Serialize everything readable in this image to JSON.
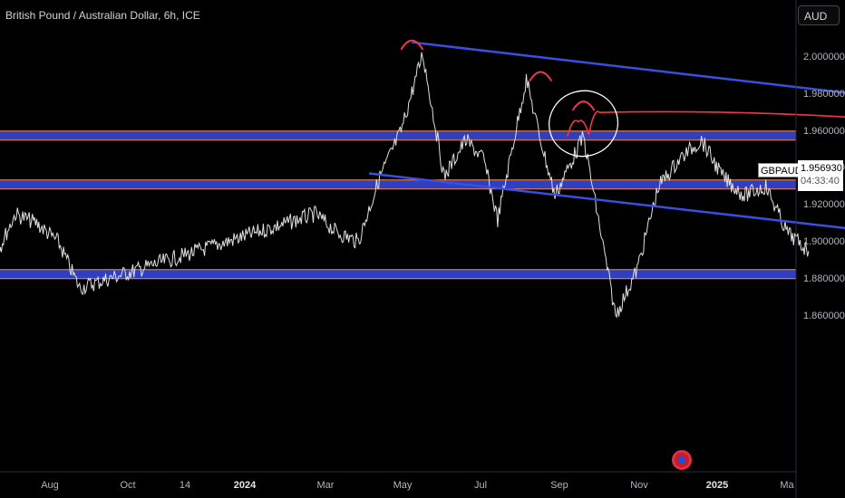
{
  "header": {
    "title": "British Pound / Australian Dollar, 6h, ICE",
    "currency_button": "AUD"
  },
  "price_tag": {
    "symbol": "GBPAUD",
    "price": "1.956930",
    "countdown": "04:33:40"
  },
  "chart_data": {
    "type": "line",
    "title": "British Pound / Australian Dollar, 6h, ICE",
    "ylim": [
      1.852,
      2.016
    ],
    "x_tick_labels": [
      "Aug",
      "Oct",
      "14",
      "2024",
      "Mar",
      "May",
      "Jul",
      "Sep",
      "Nov",
      "2025",
      "Ma"
    ],
    "y_tick_labels": [
      "2.000000",
      "1.980000",
      "1.960000",
      "1.940000",
      "1.920000",
      "1.900000",
      "1.880000",
      "1.860000"
    ],
    "y_ticks": [
      2.0,
      1.98,
      1.96,
      1.94,
      1.92,
      1.9,
      1.88,
      1.86
    ],
    "price_series": {
      "name": "GBPAUD",
      "color": "#e0e0e0",
      "points": [
        [
          "Jun 2023",
          1.905
        ],
        [
          "Jul 2023",
          1.915
        ],
        [
          "Jul 2023",
          1.935
        ],
        [
          "Aug 2023",
          1.955
        ],
        [
          "Aug 2023",
          1.993
        ],
        [
          "Sep 2023",
          1.96
        ],
        [
          "Sep 2023",
          1.935
        ],
        [
          "Oct 2023",
          1.905
        ],
        [
          "Oct 2023",
          1.89
        ],
        [
          "Nov 2023",
          1.915
        ],
        [
          "Nov 2023",
          1.91
        ],
        [
          "Dec 2023",
          1.9
        ],
        [
          "Dec 2023",
          1.875
        ],
        [
          "Jan 2024",
          1.86
        ],
        [
          "Jan 2024",
          1.885
        ],
        [
          "Feb 2024",
          1.93
        ],
        [
          "Feb 2024",
          1.945
        ],
        [
          "Mar 2024",
          1.955
        ],
        [
          "Mar 2024",
          1.935
        ],
        [
          "Apr 2024",
          1.925
        ],
        [
          "Apr 2024",
          1.93
        ],
        [
          "May 2024",
          1.905
        ],
        [
          "May 2024",
          1.895
        ],
        [
          "Jun 2024",
          1.915
        ],
        [
          "Jun 2024",
          1.905
        ],
        [
          "Jul 2024",
          1.9
        ],
        [
          "Jul 2024",
          1.935
        ],
        [
          "Aug 2024",
          1.96
        ],
        [
          "Aug 2024",
          2.002
        ],
        [
          "Sep 2024",
          1.935
        ],
        [
          "Sep 2024",
          1.955
        ],
        [
          "Oct 2024",
          1.945
        ],
        [
          "Oct 2024",
          1.912
        ],
        [
          "Oct 2024",
          1.95
        ],
        [
          "Nov 2024",
          1.988
        ],
        [
          "Nov 2024",
          1.955
        ],
        [
          "Nov 2024",
          1.925
        ],
        [
          "Dec 2024",
          1.957
        ]
      ]
    },
    "projection": {
      "color": "#f23645",
      "points": [
        [
          "Dec 2024",
          1.957
        ],
        [
          "Dec 2024",
          1.965
        ],
        [
          "Dec 2024",
          1.958
        ],
        [
          "Dec 2024",
          1.97
        ],
        [
          "Jan 2025",
          1.952
        ],
        [
          "Jan 2025",
          1.955
        ],
        [
          "Jan 2025",
          1.933
        ],
        [
          "Feb 2025",
          1.94
        ],
        [
          "Feb 2025",
          1.912
        ],
        [
          "Mar 2025",
          1.916
        ],
        [
          "Mar 2025",
          1.892
        ]
      ]
    },
    "horizontal_zones": [
      {
        "center": 1.9575,
        "fill": "#2f3fbf",
        "border": "#ff8a3d"
      },
      {
        "center": 1.931,
        "fill": "#2f3fbf",
        "border": "#ff8a3d"
      },
      {
        "center": 1.8825,
        "fill": "#2f3fbf",
        "border": "#ff8a3d"
      }
    ],
    "trendlines": [
      {
        "color": "#3a4ee0",
        "from": [
          "Aug 2024",
          2.008
        ],
        "to": [
          "Jan 2025",
          1.962
        ]
      },
      {
        "color": "#3a4ee0",
        "from": [
          "Jul 2024",
          1.937
        ],
        "to": [
          "Jan 2025",
          1.889
        ]
      }
    ],
    "peak_arcs": [
      {
        "color": "#f23645",
        "at": [
          "Aug 2023",
          1.993
        ]
      },
      {
        "color": "#f23645",
        "at": [
          "Aug 2024",
          2.005
        ]
      },
      {
        "color": "#f23645",
        "at": [
          "Nov 2024",
          1.988
        ]
      },
      {
        "color": "#f23645",
        "at": [
          "Dec 2024",
          1.972
        ]
      }
    ],
    "highlight_ellipse": {
      "color": "#ffffff",
      "center": [
        "Dec 2024",
        1.964
      ]
    },
    "grid": false,
    "legend": "none"
  }
}
